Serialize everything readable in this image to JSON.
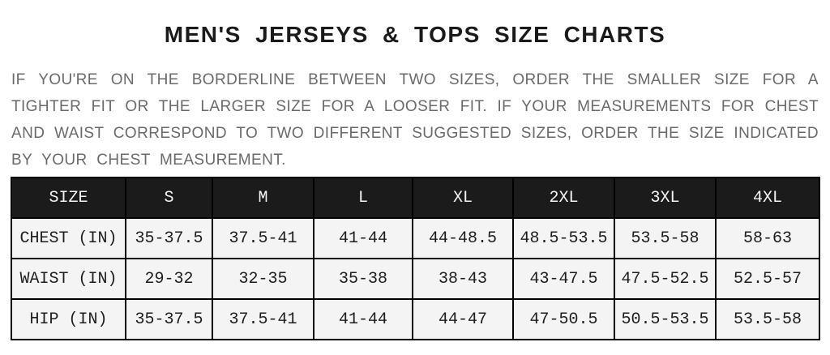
{
  "title": "MEN'S JERSEYS & TOPS SIZE CHARTS",
  "description": {
    "lines": [
      "IF YOU'RE ON THE BORDERLINE BETWEEN TWO SIZES, ORDER THE SMALLER SIZE FOR A",
      "TIGHTER FIT OR THE LARGER SIZE FOR A LOOSER FIT. IF YOUR MEASUREMENTS FOR CHEST",
      "AND WAIST CORRESPOND TO TWO DIFFERENT SUGGESTED SIZES, ORDER THE SIZE INDICATED",
      "BY YOUR CHEST MEASUREMENT."
    ]
  },
  "chart_data": {
    "type": "table",
    "title": "MEN'S JERSEYS & TOPS SIZE CHARTS",
    "columns": [
      "SIZE",
      "S",
      "M",
      "L",
      "XL",
      "2XL",
      "3XL",
      "4XL"
    ],
    "rows": [
      {
        "label": "CHEST (IN)",
        "values": [
          "35-37.5",
          "37.5-41",
          "41-44",
          "44-48.5",
          "48.5-53.5",
          "53.5-58",
          "58-63"
        ]
      },
      {
        "label": "WAIST (IN)",
        "values": [
          "29-32",
          "32-35",
          "35-38",
          "38-43",
          "43-47.5",
          "47.5-52.5",
          "52.5-57"
        ]
      },
      {
        "label": "HIP (IN)",
        "values": [
          "35-37.5",
          "37.5-41",
          "41-44",
          "44-47",
          "47-50.5",
          "50.5-53.5",
          "53.5-58"
        ]
      }
    ]
  },
  "colors": {
    "page_bg": "#ffffff",
    "title_text": "#1a1a1a",
    "body_text": "#6a6a6a",
    "table_header_bg": "#1b1b1b",
    "table_header_text": "#f5f5f5",
    "table_cell_bg": "#f4f4f5",
    "table_border": "#000000"
  }
}
